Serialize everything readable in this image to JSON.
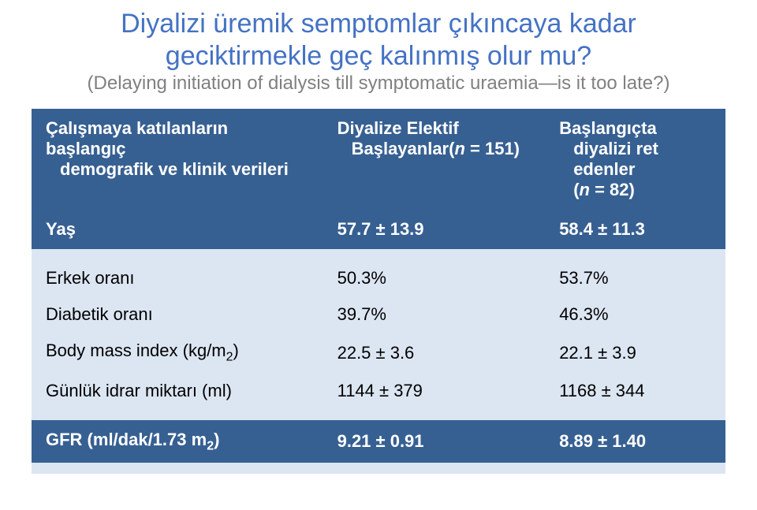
{
  "colors": {
    "title": "#4472c4",
    "subtitle": "#808080",
    "band_bg": "#dce6f2",
    "header_bg": "#376092",
    "header_fg": "#ffffff",
    "body_fg": "#000000",
    "page_bg": "#ffffff"
  },
  "title": {
    "line1": "Diyalizi üremik semptomlar çıkıncaya kadar",
    "line2": "geciktirmekle geç kalınmış olur mu?",
    "sub": "(Delaying initiation of dialysis till symptomatic uraemia—is it too late?)"
  },
  "table": {
    "header": {
      "c0l1": "Çalışmaya katılanların başlangıç",
      "c0l2": "demografik ve klinik verileri",
      "c1l1": "Diyalize Elektif",
      "c1l2_pre": "Başlayanlar(",
      "c1l2_n": "n",
      "c1l2_post": " = 151)",
      "c2l1": "Başlangıçta",
      "c2l2": "diyalizi ret",
      "c2l3": "edenler",
      "c2l4_pre": "(",
      "c2l4_n": "n",
      "c2l4_post": " = 82)"
    },
    "rows": [
      {
        "label": "Yaş",
        "v1": "57.7 ± 13.9",
        "v2": "58.4 ± 11.3"
      },
      {
        "label": "Erkek oranı",
        "v1": "50.3%",
        "v2": "53.7%"
      },
      {
        "label": "Diabetik oranı",
        "v1": "39.7%",
        "v2": "46.3%"
      },
      {
        "label": "Body mass index (kg/m",
        "sub": "2",
        "label_post": ")",
        "v1": "22.5 ± 3.6",
        "v2": "22.1 ± 3.9"
      },
      {
        "label": "Günlük idrar miktarı (ml)",
        "v1": "1144 ± 379",
        "v2": "1168 ± 344"
      },
      {
        "label": "GFR (ml/dak/1.73 m",
        "sub": "2",
        "label_post": ")",
        "v1": "9.21 ± 0.91",
        "v2": "8.89 ± 1.40"
      }
    ]
  }
}
